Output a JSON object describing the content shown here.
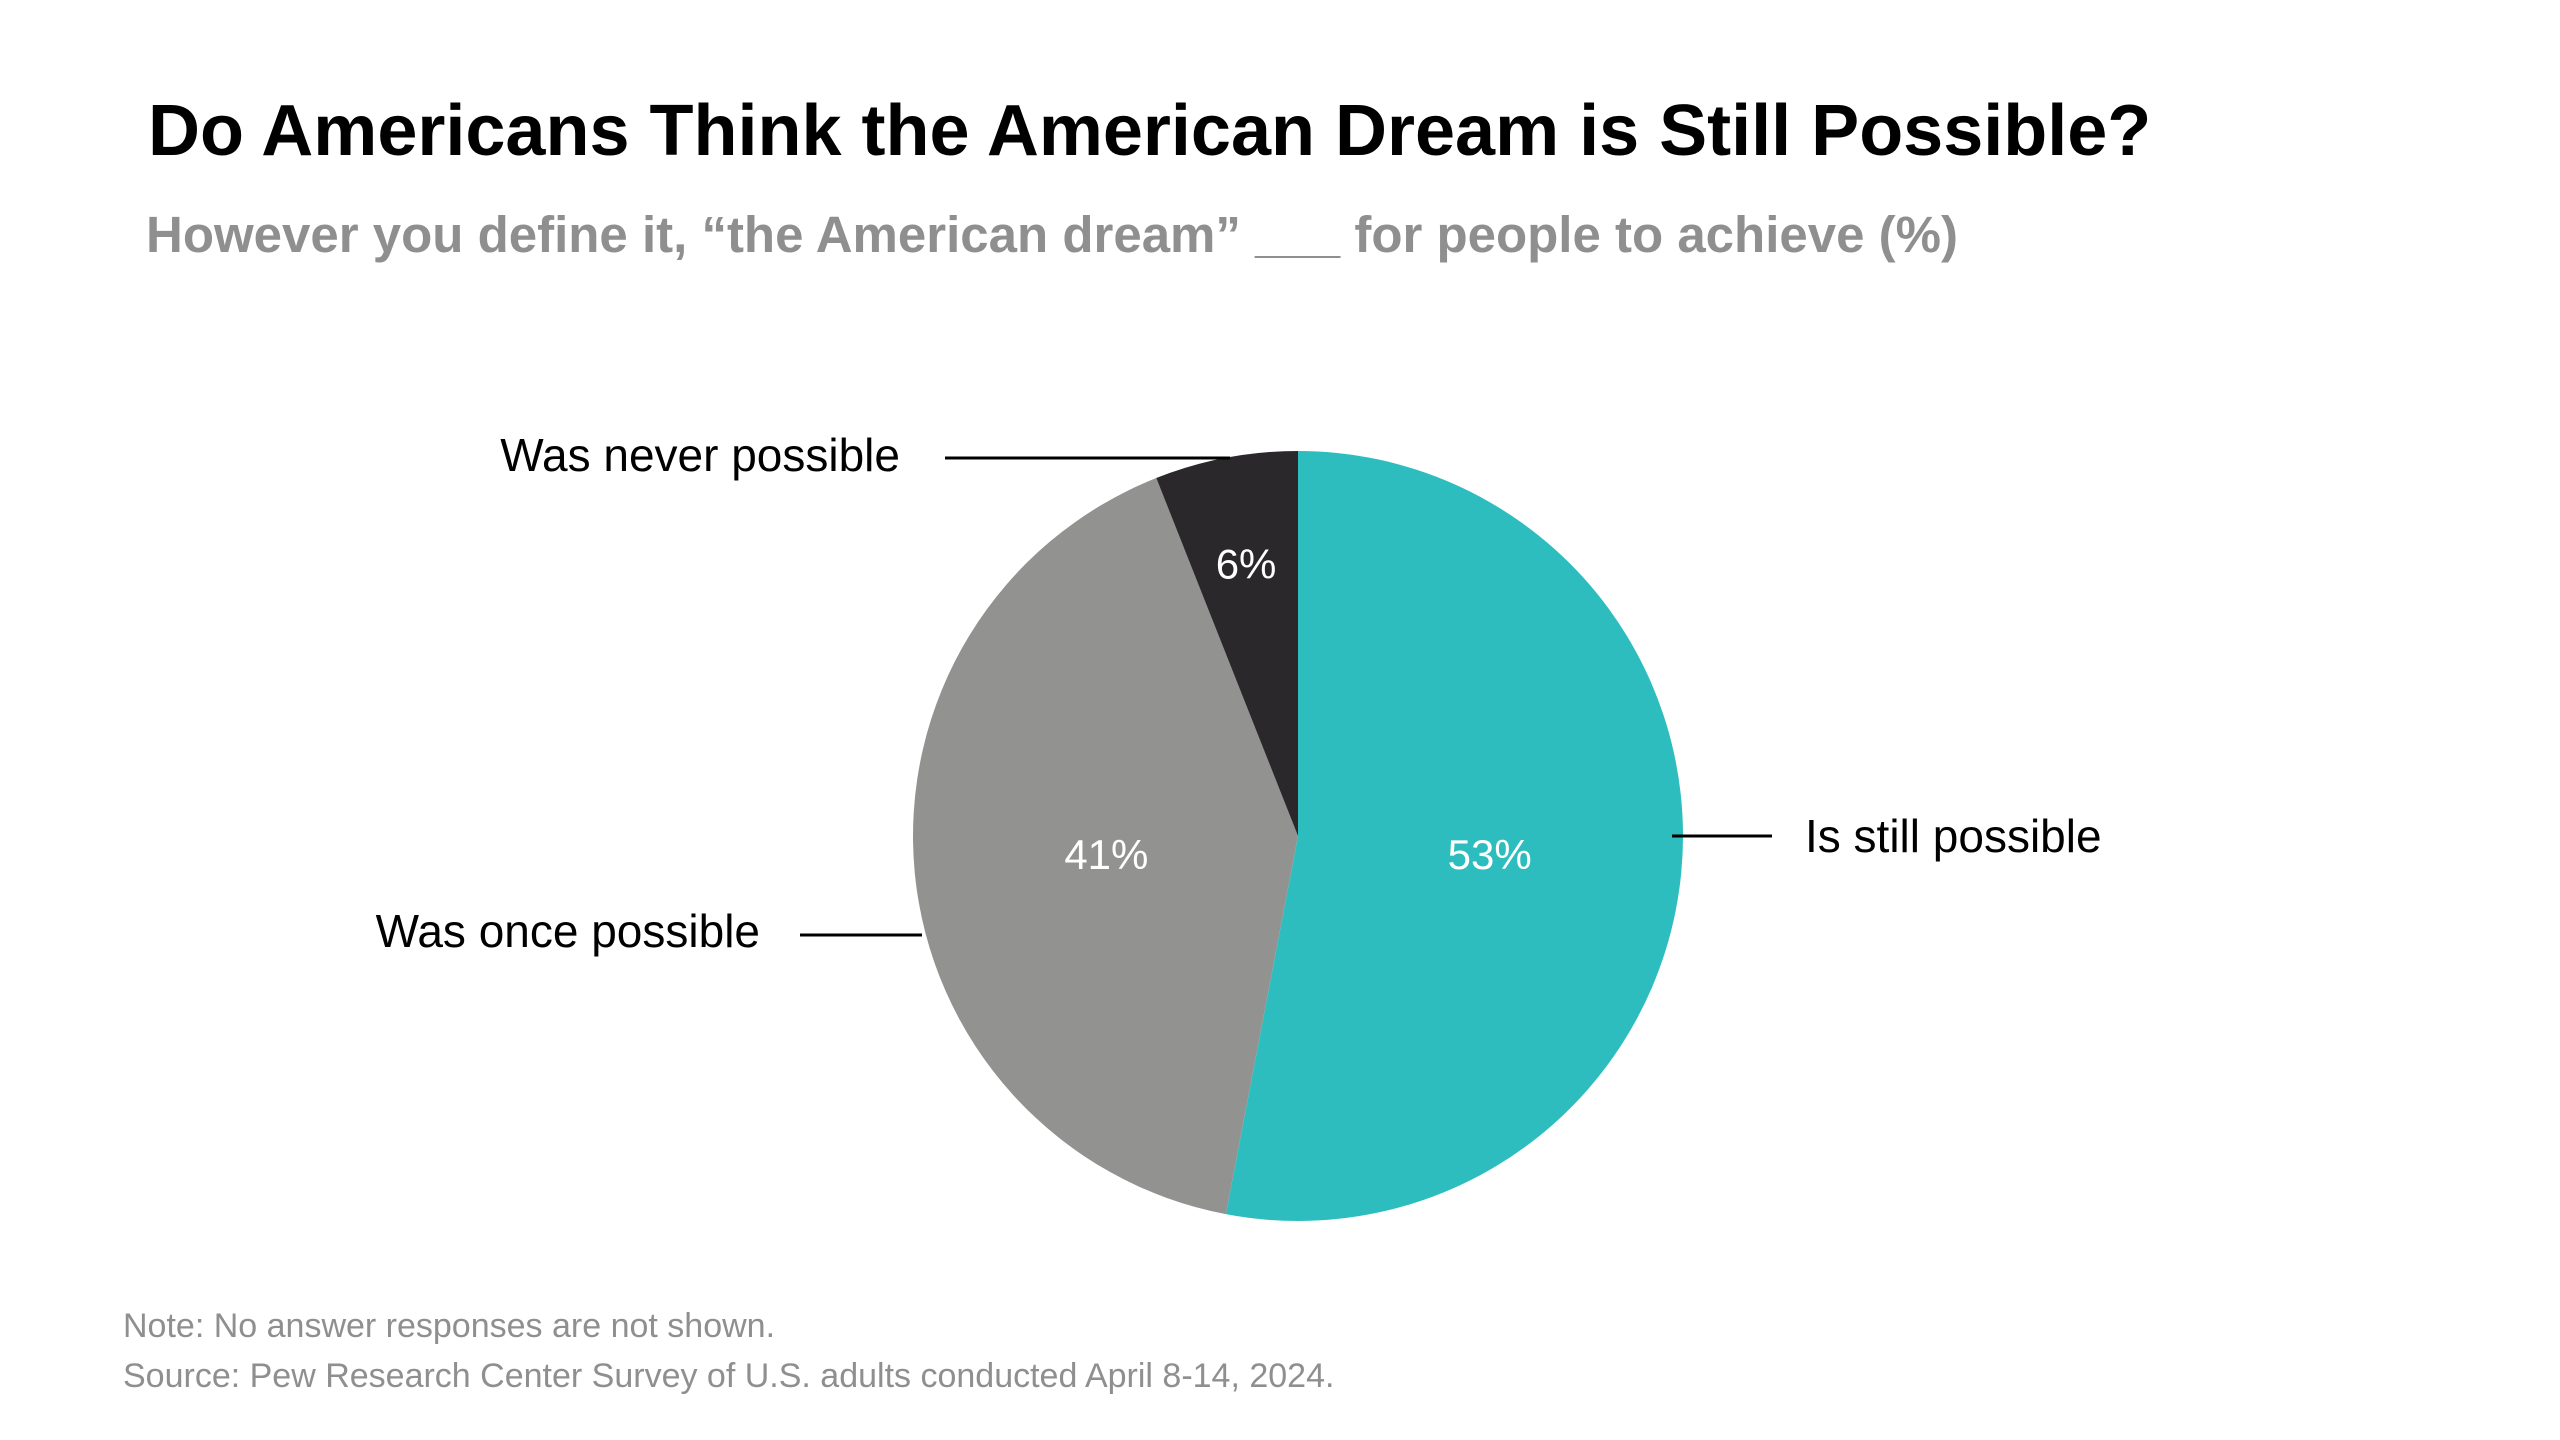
{
  "header": {
    "title": "Do Americans Think the American Dream is Still Possible?",
    "subtitle": "However you define it, “the American dream” ___ for people to achieve (%)"
  },
  "chart_data": {
    "type": "pie",
    "title": "Do Americans Think the American Dream is Still Possible?",
    "subtitle": "However you define it, “the American dream” ___ for people to achieve (%)",
    "start_angle_deg": 0,
    "direction": "clockwise",
    "slices": [
      {
        "key": "still",
        "label": "Is still possible",
        "value": 53,
        "display": "53%",
        "color": "#2ebdbf"
      },
      {
        "key": "once",
        "label": "Was once possible",
        "value": 41,
        "display": "41%",
        "color": "#929391"
      },
      {
        "key": "never",
        "label": "Was never possible",
        "value": 6,
        "display": "6%",
        "color": "#2a282a"
      }
    ]
  },
  "footer": {
    "note": "Note: No answer responses are not shown.",
    "source": "Source: Pew Research Center Survey of U.S. adults conducted April 8-14, 2024."
  }
}
